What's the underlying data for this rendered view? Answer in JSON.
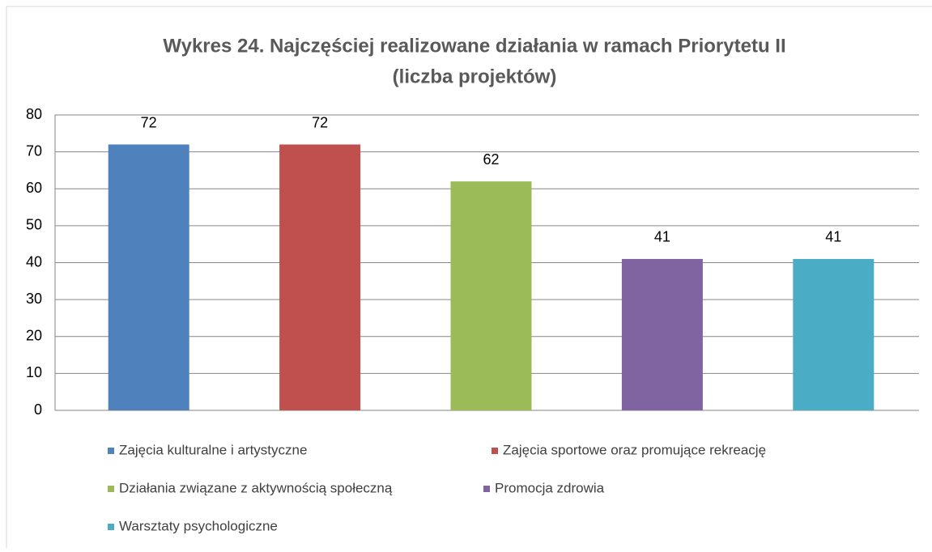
{
  "chart_data": {
    "type": "bar",
    "title": [
      "Wykres 24. Najczęściej realizowane działania w ramach Priorytetu II",
      "(liczba projektów)"
    ],
    "series": [
      {
        "name": "Zajęcia kulturalne i artystyczne",
        "color": "#4f81bd",
        "values": [
          72
        ]
      },
      {
        "name": "Zajęcia sportowe oraz promujące rekreację",
        "color": "#c0504d",
        "values": [
          72
        ]
      },
      {
        "name": "Działania związane z aktywnością społeczną",
        "color": "#9bbb59",
        "values": [
          62
        ]
      },
      {
        "name": "Promocja zdrowia",
        "color": "#8064a2",
        "values": [
          41
        ]
      },
      {
        "name": "Warsztaty psychologiczne",
        "color": "#4bacc6",
        "values": [
          41
        ]
      }
    ],
    "ylim": [
      0,
      80
    ],
    "yticks": [
      0,
      10,
      20,
      30,
      40,
      50,
      60,
      70,
      80
    ],
    "grid": true
  }
}
